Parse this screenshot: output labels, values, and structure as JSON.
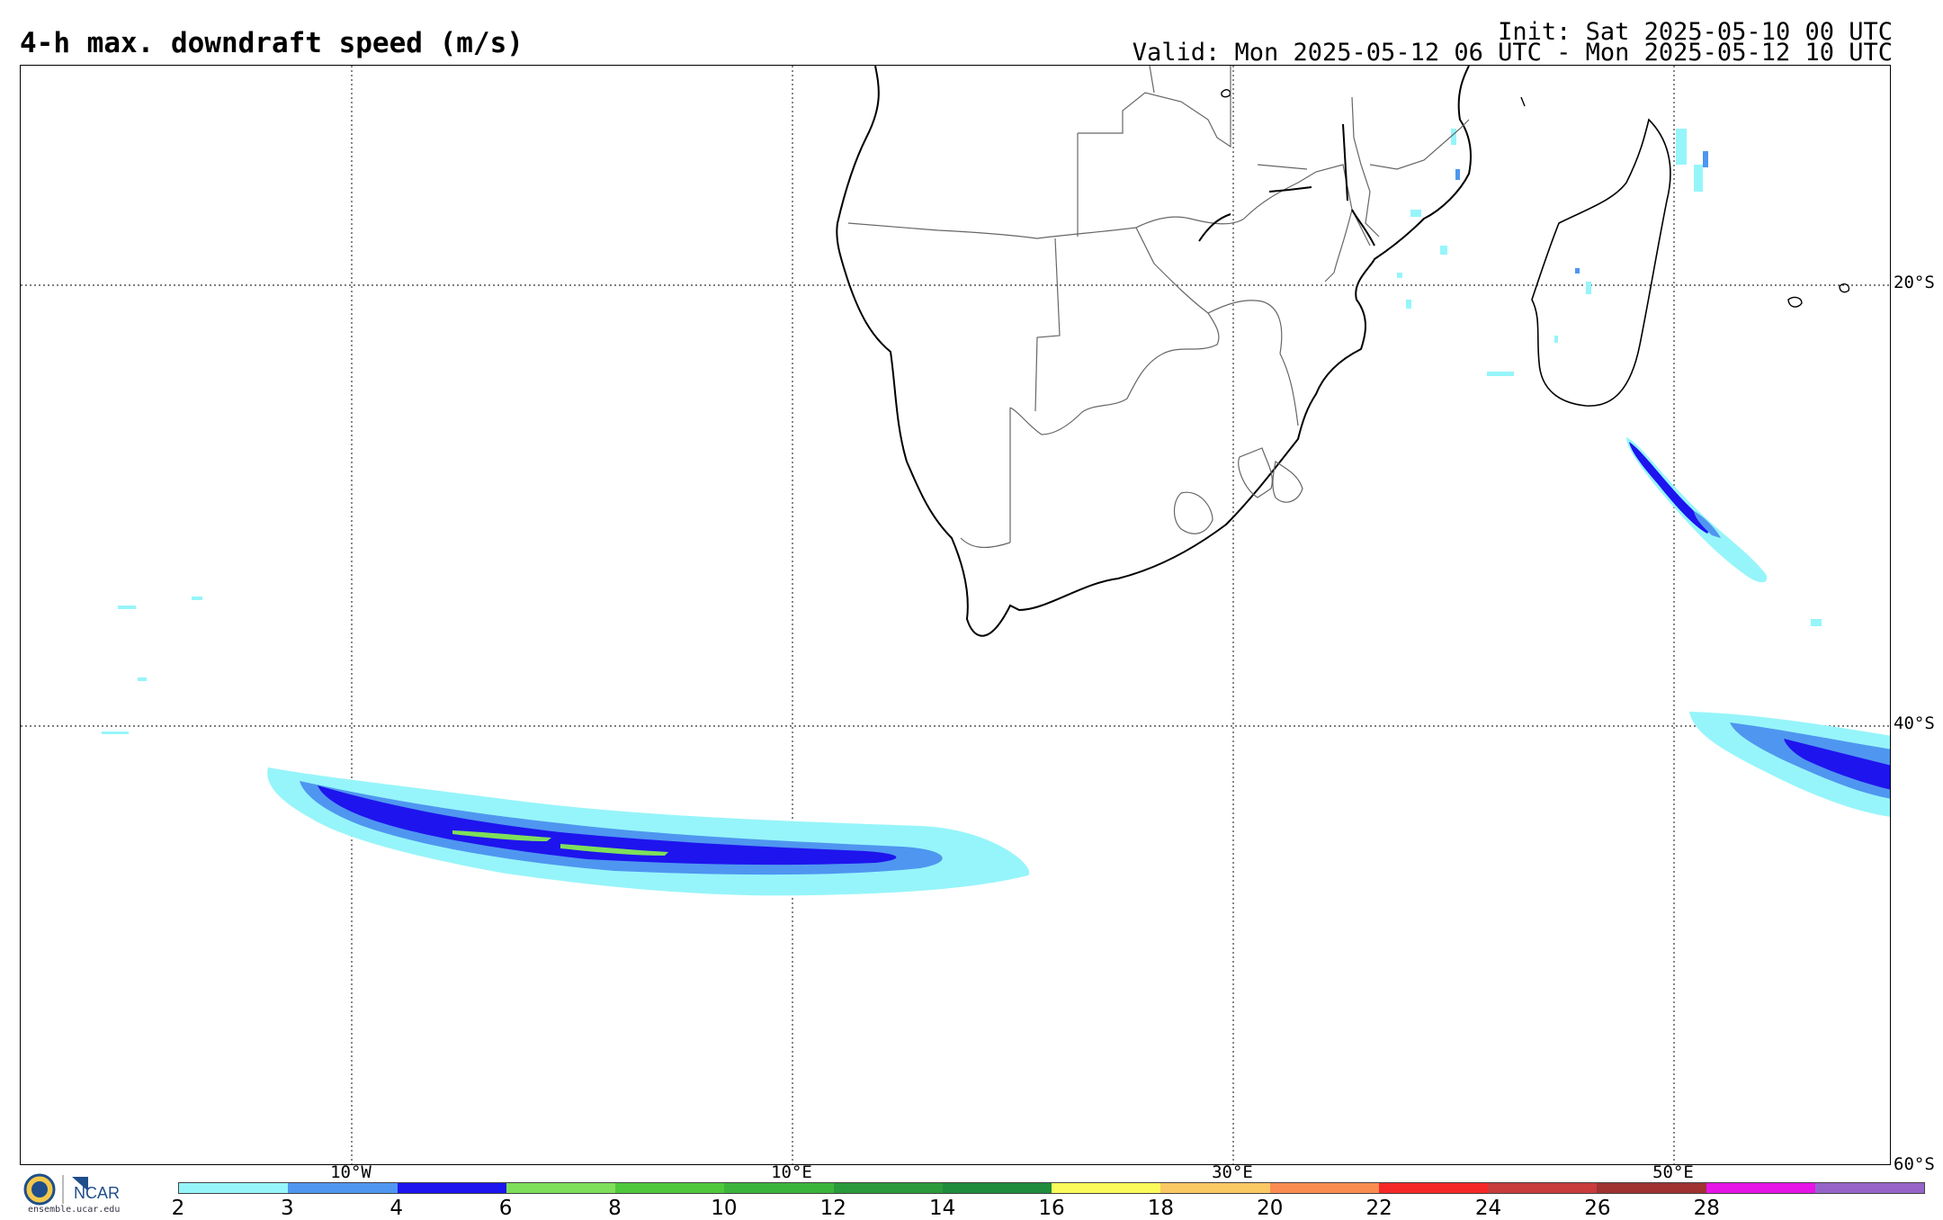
{
  "header": {
    "title": "4-h max. downdraft speed (m/s)",
    "init": "Init: Sat 2025-05-10 00 UTC",
    "valid": "Valid: Mon 2025-05-12 06 UTC - Mon 2025-05-12 10 UTC"
  },
  "map": {
    "projection": "lat-lon",
    "lat_labels": [
      "20°S",
      "40°S",
      "60°S"
    ],
    "lon_labels": [
      "10°W",
      "10°E",
      "30°E",
      "50°E"
    ],
    "grid": "dotted"
  },
  "colorbar": {
    "ticks": [
      "2",
      "3",
      "4",
      "6",
      "8",
      "10",
      "12",
      "14",
      "16",
      "18",
      "20",
      "22",
      "24",
      "26",
      "28"
    ],
    "colors": [
      "#96f5fa",
      "#4f96f0",
      "#1e14ee",
      "#7ee05a",
      "#50c83c",
      "#3cb43c",
      "#2a9a3c",
      "#1e8c3c",
      "#fafa5a",
      "#fac864",
      "#fa8c50",
      "#f52828",
      "#c83c3c",
      "#a03232",
      "#e614e6",
      "#9664c8"
    ]
  },
  "logo": {
    "name": "NCAR",
    "url_text": "ensemble.ucar.edu"
  }
}
